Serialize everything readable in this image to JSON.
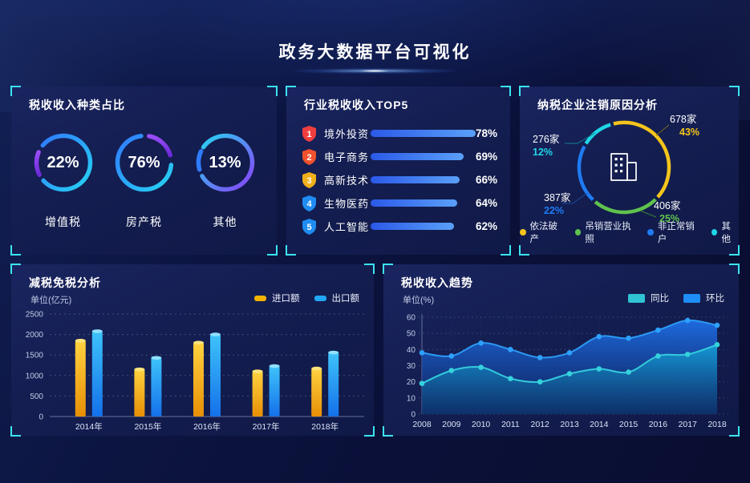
{
  "header": {
    "title": "政务大数据平台可视化"
  },
  "chart_data": [
    {
      "id": "tax_type_share",
      "type": "pie",
      "title": "税收收入种类占比",
      "items": [
        {
          "label": "增值税",
          "value": 22,
          "percent_label": "22%"
        },
        {
          "label": "房产税",
          "value": 76,
          "percent_label": "76%"
        },
        {
          "label": "其他",
          "value": 13,
          "percent_label": "13%"
        }
      ]
    },
    {
      "id": "industry_tax_top5",
      "type": "bar",
      "title": "行业税收收入TOP5",
      "categories": [
        "境外投资",
        "电子商务",
        "高新技术",
        "生物医药",
        "人工智能"
      ],
      "values": [
        78,
        69,
        66,
        64,
        62
      ],
      "max_value": 78,
      "items": [
        {
          "rank": "1",
          "label": "境外投资",
          "value": 78,
          "percent_label": "78%",
          "badge_color": "#f03e3e"
        },
        {
          "rank": "2",
          "label": "电子商务",
          "value": 69,
          "percent_label": "69%",
          "badge_color": "#f1512d"
        },
        {
          "rank": "3",
          "label": "高新技术",
          "value": 66,
          "percent_label": "66%",
          "badge_color": "#f0b019"
        },
        {
          "rank": "4",
          "label": "生物医药",
          "value": 64,
          "percent_label": "64%",
          "badge_color": "#1f8cf2"
        },
        {
          "rank": "5",
          "label": "人工智能",
          "value": 62,
          "percent_label": "62%",
          "badge_color": "#1f8cf2"
        }
      ],
      "bar_colors": [
        "#2b59e8",
        "#5aa0f8"
      ]
    },
    {
      "id": "deregistration_reasons",
      "type": "pie",
      "title": "纳税企业注销原因分析",
      "segments": [
        {
          "label": "依法破产",
          "count_label": "678家",
          "percent": 43,
          "percent_label": "43%",
          "color": "#f5c51c"
        },
        {
          "label": "吊销营业执照",
          "count_label": "406家",
          "percent": 25,
          "percent_label": "25%",
          "color": "#5fc24d"
        },
        {
          "label": "非正常销户",
          "count_label": "387家",
          "percent": 22,
          "percent_label": "22%",
          "color": "#1f7bf2"
        },
        {
          "label": "其他",
          "count_label": "276家",
          "percent": 12,
          "percent_label": "12%",
          "color": "#1fd6e8"
        }
      ],
      "center_icon": "building-icon"
    },
    {
      "id": "tax_reduction",
      "type": "bar",
      "title": "减税免税分析",
      "ylabel": "单位(亿元)",
      "categories": [
        "2014年",
        "2015年",
        "2016年",
        "2017年",
        "2018年"
      ],
      "series": [
        {
          "name": "进口额",
          "color": "#f5b301",
          "values": [
            1850,
            1150,
            1800,
            1100,
            1170
          ]
        },
        {
          "name": "出口额",
          "color": "#22a7f5",
          "values": [
            2080,
            1430,
            2000,
            1230,
            1560
          ]
        }
      ],
      "ylim": [
        0,
        2500
      ],
      "yticks": [
        0,
        500,
        1000,
        1500,
        2000,
        2500
      ],
      "grid": "dotted",
      "legend_position": "top-right"
    },
    {
      "id": "tax_trend",
      "type": "area",
      "title": "税收收入趋势",
      "ylabel": "单位(%)",
      "x": [
        "2008",
        "2009",
        "2010",
        "2011",
        "2012",
        "2013",
        "2014",
        "2015",
        "2016",
        "2017",
        "2018"
      ],
      "series": [
        {
          "name": "同比",
          "color": "#2fc3d4",
          "values": [
            19,
            27,
            29,
            22,
            20,
            25,
            28,
            26,
            36,
            37,
            43
          ]
        },
        {
          "name": "环比",
          "color": "#1e8df5",
          "values": [
            38,
            36,
            44,
            40,
            35,
            38,
            48,
            47,
            52,
            58,
            55
          ]
        }
      ],
      "ylim": [
        0,
        60
      ],
      "yticks": [
        0,
        10,
        20,
        30,
        40,
        50,
        60
      ],
      "grid": "dotted",
      "legend_position": "top-right"
    }
  ]
}
